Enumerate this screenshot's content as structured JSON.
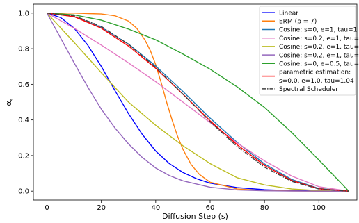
{
  "chart_data": {
    "type": "line",
    "xlabel": "Diffusion Step (s)",
    "ylabel": "ᾱ",
    "ylabel_sub": "s",
    "xlim": [
      -5,
      114
    ],
    "ylim": [
      -0.05,
      1.05
    ],
    "xticks": [
      0,
      20,
      40,
      60,
      80,
      100
    ],
    "yticks": [
      0.0,
      0.2,
      0.4,
      0.6,
      0.8,
      1.0
    ],
    "xtick_labels": [
      "0",
      "20",
      "40",
      "60",
      "80",
      "100"
    ],
    "ytick_labels": [
      "0.0",
      "0.2",
      "0.4",
      "0.6",
      "0.8",
      "1.0"
    ],
    "grid": false,
    "legend_position": "top-right",
    "legend_items": [
      {
        "lines": [
          "Linear"
        ],
        "color": "#0000ff",
        "dash": "solid"
      },
      {
        "lines": [
          "ERM (ρ = 7)"
        ],
        "color": "#ff7f0e",
        "dash": "solid"
      },
      {
        "lines": [
          "Cosine: s=0, e=1, tau=1"
        ],
        "color": "#1f77b4",
        "dash": "solid"
      },
      {
        "lines": [
          "Cosine: s=0.2, e=1, tau=1"
        ],
        "color": "#e377c2",
        "dash": "solid"
      },
      {
        "lines": [
          "Cosine: s=0.2, e=1, tau=2"
        ],
        "color": "#bcbd22",
        "dash": "solid"
      },
      {
        "lines": [
          "Cosine: s=0.2, e=1, tau=3"
        ],
        "color": "#9467bd",
        "dash": "solid"
      },
      {
        "lines": [
          "Cosine: s=0, e=0.5, tau=1"
        ],
        "color": "#2ca02c",
        "dash": "solid"
      },
      {
        "lines": [
          "parametric estimation:",
          " s=0.0, e=1.0, tau=1.04"
        ],
        "color": "#ff0000",
        "dash": "solid"
      },
      {
        "lines": [
          "Spectral Scheduler"
        ],
        "color": "#404040",
        "dash": "dashdot"
      }
    ],
    "series": [
      {
        "name": "Linear",
        "color": "#0000ff",
        "dash": "solid",
        "x": [
          0,
          5,
          10,
          15,
          20,
          25,
          30,
          35,
          40,
          45,
          50,
          55,
          60,
          70,
          80,
          90,
          100,
          111
        ],
        "y": [
          1.0,
          0.975,
          0.915,
          0.82,
          0.7,
          0.565,
          0.435,
          0.32,
          0.225,
          0.155,
          0.105,
          0.07,
          0.045,
          0.02,
          0.008,
          0.003,
          0.001,
          0.0
        ]
      },
      {
        "name": "ERM (ρ = 7)",
        "color": "#ff7f0e",
        "dash": "solid",
        "x": [
          0,
          10,
          20,
          25,
          30,
          33,
          36,
          38,
          40,
          42,
          44,
          46,
          48,
          50,
          53,
          56,
          60,
          70,
          80,
          90,
          100,
          111
        ],
        "y": [
          1.0,
          1.0,
          0.995,
          0.985,
          0.955,
          0.915,
          0.85,
          0.79,
          0.71,
          0.61,
          0.5,
          0.4,
          0.31,
          0.235,
          0.15,
          0.095,
          0.05,
          0.012,
          0.003,
          0.001,
          0.0,
          0.0
        ]
      },
      {
        "name": "Cosine: s=0, e=1, tau=1",
        "color": "#1f77b4",
        "dash": "solid",
        "x": [
          0,
          10,
          20,
          30,
          40,
          50,
          60,
          70,
          80,
          90,
          100,
          111
        ],
        "y": [
          1.0,
          0.98,
          0.92,
          0.826,
          0.703,
          0.56,
          0.41,
          0.273,
          0.153,
          0.066,
          0.015,
          0.0
        ]
      },
      {
        "name": "Cosine: s=0.2, e=1, tau=1",
        "color": "#e377c2",
        "dash": "solid",
        "x": [
          0,
          10,
          20,
          30,
          40,
          50,
          60,
          70,
          80,
          90,
          100,
          111
        ],
        "y": [
          1.0,
          0.915,
          0.82,
          0.72,
          0.615,
          0.5,
          0.385,
          0.27,
          0.17,
          0.085,
          0.025,
          0.0
        ]
      },
      {
        "name": "Cosine: s=0.2, e=1, tau=2",
        "color": "#bcbd22",
        "dash": "solid",
        "x": [
          0,
          10,
          20,
          30,
          40,
          50,
          60,
          70,
          80,
          90,
          100,
          111
        ],
        "y": [
          1.0,
          0.835,
          0.665,
          0.5,
          0.37,
          0.255,
          0.155,
          0.075,
          0.035,
          0.012,
          0.003,
          0.0
        ]
      },
      {
        "name": "Cosine: s=0.2, e=1, tau=3",
        "color": "#9467bd",
        "dash": "solid",
        "x": [
          0,
          5,
          10,
          15,
          20,
          25,
          30,
          35,
          40,
          45,
          50,
          60,
          70,
          80,
          90,
          100,
          111
        ],
        "y": [
          1.0,
          0.86,
          0.72,
          0.585,
          0.46,
          0.355,
          0.265,
          0.19,
          0.13,
          0.088,
          0.058,
          0.022,
          0.007,
          0.002,
          0.0005,
          0.0,
          0.0
        ]
      },
      {
        "name": "Cosine: s=0, e=0.5, tau=1",
        "color": "#2ca02c",
        "dash": "solid",
        "x": [
          0,
          10,
          20,
          30,
          40,
          50,
          60,
          70,
          80,
          90,
          100,
          111
        ],
        "y": [
          1.0,
          0.99,
          0.96,
          0.91,
          0.85,
          0.77,
          0.685,
          0.585,
          0.47,
          0.33,
          0.175,
          0.0
        ]
      },
      {
        "name": "parametric estimation: s=0.0, e=1.0, tau=1.04",
        "color": "#ff0000",
        "dash": "solid",
        "x": [
          0,
          10,
          20,
          30,
          40,
          50,
          60,
          70,
          80,
          90,
          100,
          111
        ],
        "y": [
          1.0,
          0.98,
          0.915,
          0.815,
          0.69,
          0.545,
          0.395,
          0.26,
          0.145,
          0.06,
          0.013,
          0.0
        ]
      },
      {
        "name": "Spectral Scheduler",
        "color": "#404040",
        "dash": "dashdot",
        "x": [
          0,
          10,
          20,
          30,
          40,
          50,
          60,
          70,
          80,
          90,
          100,
          111
        ],
        "y": [
          1.0,
          0.985,
          0.925,
          0.825,
          0.695,
          0.545,
          0.39,
          0.25,
          0.135,
          0.055,
          0.012,
          0.0
        ]
      }
    ]
  }
}
